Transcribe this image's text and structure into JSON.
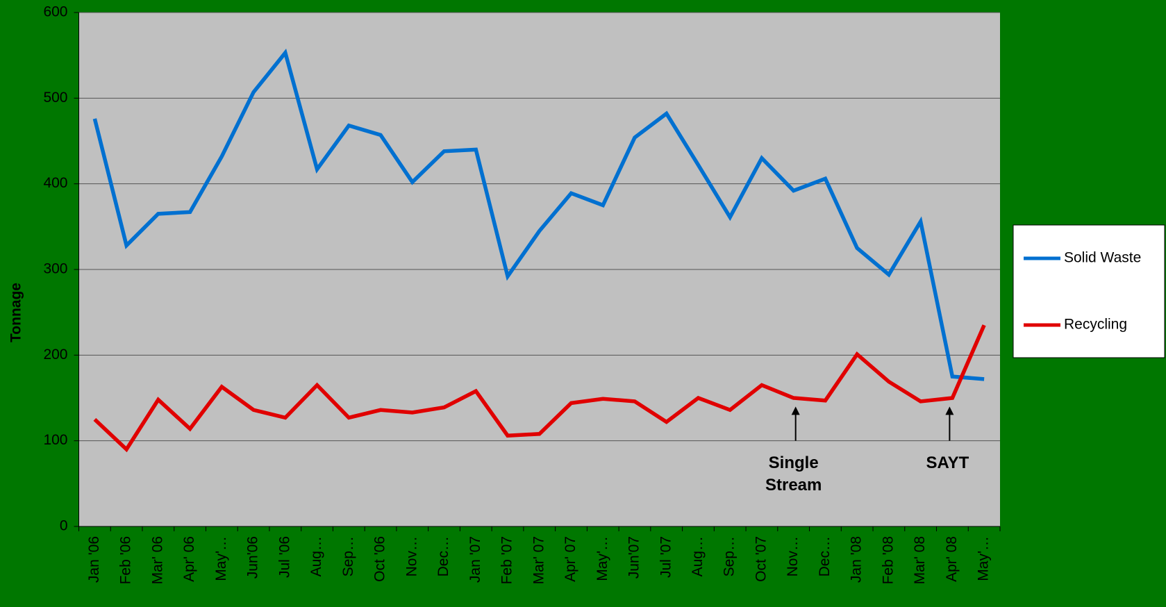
{
  "chart_data": {
    "type": "line",
    "y_label": "Tonnage",
    "categories": [
      "Jan '06",
      "Feb '06",
      "Mar' 06",
      "Apr' 06",
      "May'…",
      "Jun'06",
      "Jul '06",
      "Aug…",
      "Sep…",
      "Oct '06",
      "Nov…",
      "Dec…",
      "Jan '07",
      "Feb '07",
      "Mar' 07",
      "Apr' 07",
      "May'…",
      "Jun'07",
      "Jul '07",
      "Aug…",
      "Sep…",
      "Oct '07",
      "Nov…",
      "Dec…",
      "Jan '08",
      "Feb '08",
      "Mar' 08",
      "Apr' 08",
      "May'…"
    ],
    "series": [
      {
        "name": "Solid Waste",
        "color": "#0070d0",
        "values": [
          476,
          328,
          365,
          367,
          432,
          507,
          553,
          417,
          468,
          457,
          402,
          438,
          440,
          292,
          345,
          389,
          375,
          454,
          482,
          422,
          361,
          430,
          392,
          406,
          325,
          294,
          356,
          175,
          172
        ]
      },
      {
        "name": "Recycling",
        "color": "#e00000",
        "values": [
          125,
          90,
          148,
          114,
          163,
          136,
          127,
          165,
          127,
          136,
          133,
          139,
          158,
          106,
          108,
          144,
          149,
          146,
          122,
          150,
          136,
          165,
          150,
          147,
          201,
          169,
          146,
          150,
          235
        ]
      }
    ],
    "ylim": [
      0,
      600
    ],
    "yticks": [
      0,
      100,
      200,
      300,
      400,
      500,
      600
    ],
    "grid": true,
    "legend": "right",
    "annotations": [
      {
        "lines": [
          "Single",
          "Stream"
        ]
      },
      {
        "lines": [
          "SAYT"
        ]
      }
    ]
  }
}
